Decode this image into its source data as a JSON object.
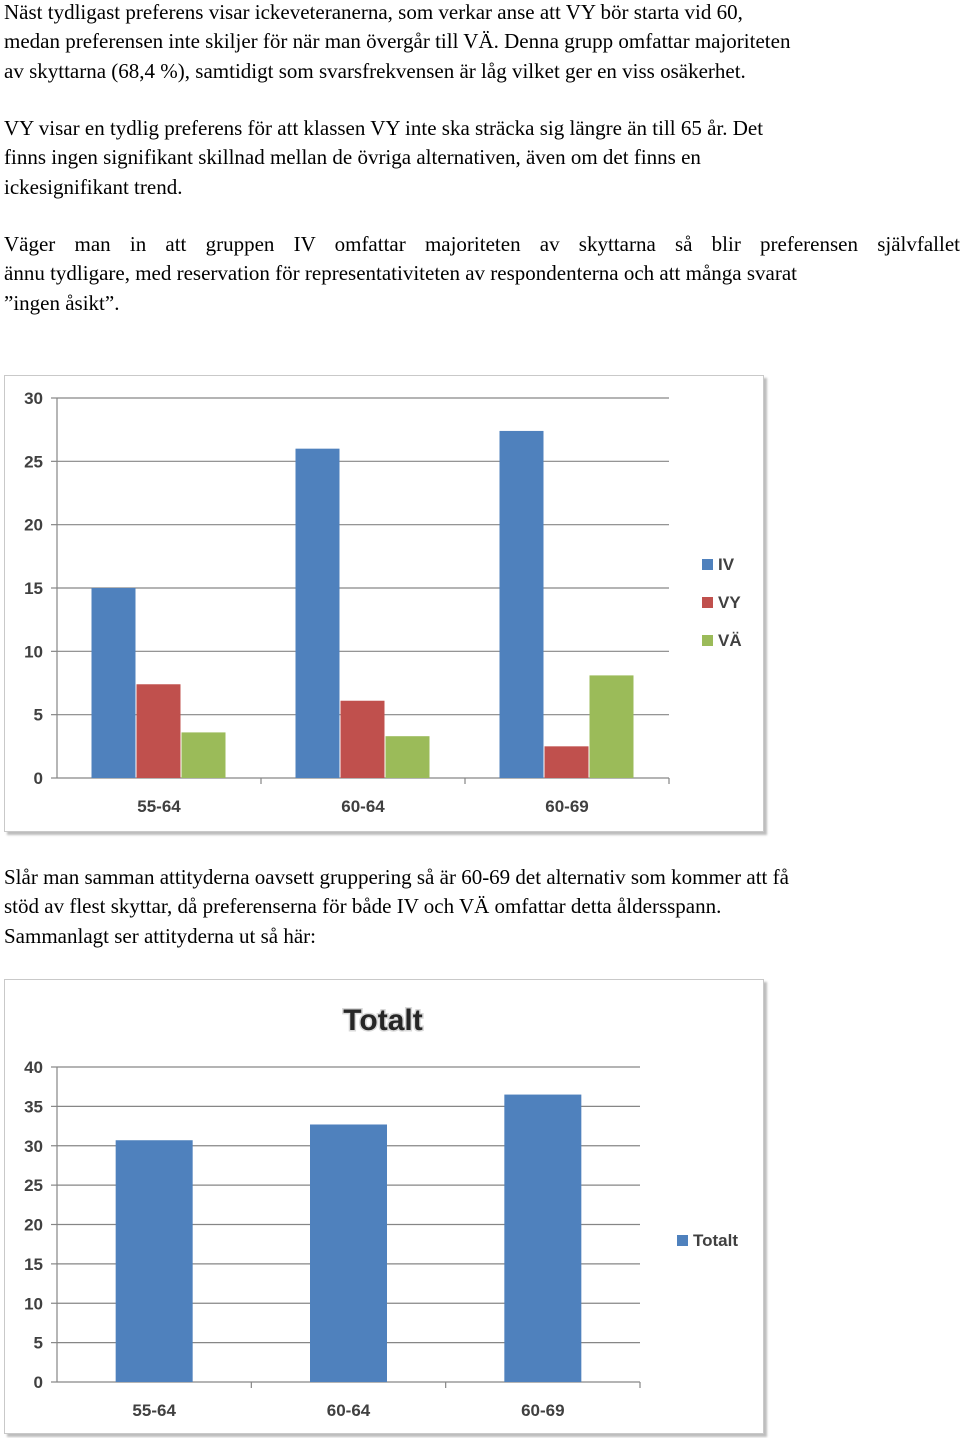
{
  "paragraphs": [
    {
      "lines": [
        "Näst tydligast preferens visar ickeveteranerna, som verkar anse att VY bör starta vid 60,",
        "medan preferensen inte skiljer för när man övergår till VÄ. Denna grupp omfattar majoriteten",
        "av skyttarna (68,4 %), samtidigt som svarsfrekvensen är låg vilket ger en viss osäkerhet."
      ]
    },
    {
      "lines": [
        "VY visar en tydlig preferens för att klassen VY inte ska sträcka sig längre än till 65 år. Det",
        "finns ingen signifikant skillnad mellan de övriga alternativen, även om det finns en",
        "ickesignifikant trend."
      ]
    },
    {
      "lines": [
        "Väger man in att gruppen IV omfattar majoriteten av skyttarna så blir preferensen självfallet",
        "ännu tydligare, med reservation för representativiteten av respondenterna och att många svarat",
        "”ingen åsikt”."
      ]
    },
    {
      "lines": [
        "Slår man samman attityderna oavsett gruppering så är 60-69 det alternativ som kommer att få",
        "stöd av flest skyttar, då preferenserna för både IV och VÄ omfattar detta åldersspann.",
        "Sammanlagt ser attityderna ut så här:"
      ]
    }
  ],
  "chart_data": [
    {
      "type": "bar",
      "title": "",
      "categories": [
        "55-64",
        "60-64",
        "60-69"
      ],
      "series": [
        {
          "name": "IV",
          "values": [
            15,
            26,
            27.4
          ],
          "color": "#4f81bd"
        },
        {
          "name": "VY",
          "values": [
            7.4,
            6.1,
            2.5
          ],
          "color": "#c0504d"
        },
        {
          "name": "VÄ",
          "values": [
            3.6,
            3.3,
            8.1
          ],
          "color": "#9bbb59"
        }
      ],
      "ylim": [
        0,
        30
      ],
      "yticks": [
        0,
        5,
        10,
        15,
        20,
        25,
        30
      ],
      "grid": true,
      "legend": "right"
    },
    {
      "type": "bar",
      "title": "Totalt",
      "categories": [
        "55-64",
        "60-64",
        "60-69"
      ],
      "series": [
        {
          "name": "Totalt",
          "values": [
            30.7,
            32.7,
            36.5
          ],
          "color": "#4f81bd"
        }
      ],
      "ylim": [
        0,
        40
      ],
      "yticks": [
        0,
        5,
        10,
        15,
        20,
        25,
        30,
        35,
        40
      ],
      "grid": true,
      "legend": "right"
    }
  ]
}
